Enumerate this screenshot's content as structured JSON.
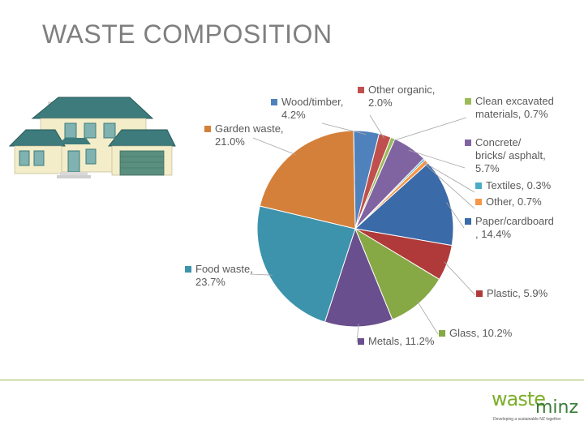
{
  "title": "WASTE COMPOSITION",
  "logo": {
    "word1": "waste",
    "word2": "minz",
    "tagline": "Developing a sustainable NZ together"
  },
  "chart_data": {
    "type": "pie",
    "title": "",
    "slices": [
      {
        "name": "Wood/timber",
        "value": 4.2,
        "label": [
          "Wood/timber,",
          "4.2%"
        ],
        "color": "#4f81bd"
      },
      {
        "name": "Other organic",
        "value": 2.0,
        "label": [
          "Other organic,",
          "2.0%"
        ],
        "color": "#c0504d"
      },
      {
        "name": "Clean excavated materials",
        "value": 0.7,
        "label": [
          "Clean excavated",
          "materials, 0.7%"
        ],
        "color": "#9bbb59"
      },
      {
        "name": "Concrete/ bricks/ asphalt",
        "value": 5.7,
        "label": [
          "Concrete/",
          "bricks/ asphalt,",
          "5.7%"
        ],
        "color": "#8064a2"
      },
      {
        "name": "Textiles",
        "value": 0.3,
        "label": [
          "Textiles, 0.3%"
        ],
        "color": "#4bacc6"
      },
      {
        "name": "Other",
        "value": 0.7,
        "label": [
          "Other, 0.7%"
        ],
        "color": "#f79646"
      },
      {
        "name": "Paper/cardboard",
        "value": 14.4,
        "label": [
          "Paper/cardboard",
          ", 14.4%"
        ],
        "color": "#3a6aa8"
      },
      {
        "name": "Plastic",
        "value": 5.9,
        "label": [
          "Plastic, 5.9%"
        ],
        "color": "#b03a3a"
      },
      {
        "name": "Glass",
        "value": 10.2,
        "label": [
          "Glass, 10.2%"
        ],
        "color": "#86a845"
      },
      {
        "name": "Metals",
        "value": 11.2,
        "label": [
          "Metals, 11.2%"
        ],
        "color": "#6a4f8e"
      },
      {
        "name": "Food waste",
        "value": 23.7,
        "label": [
          "Food waste,",
          "23.7%"
        ],
        "color": "#3d93ab"
      },
      {
        "name": "Garden waste",
        "value": 21.0,
        "label": [
          "Garden waste,",
          "21.0%"
        ],
        "color": "#d4803a"
      }
    ],
    "label_color": "#595959"
  }
}
